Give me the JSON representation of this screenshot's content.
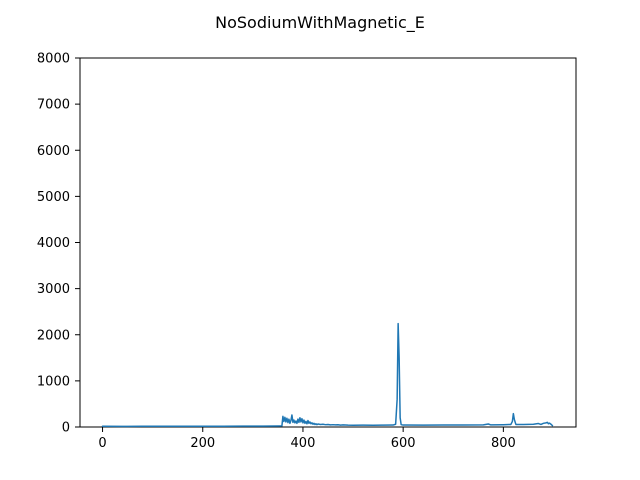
{
  "chart_data": {
    "type": "line",
    "title": "NoSodiumWithMagnetic_E",
    "xlabel": "",
    "ylabel": "",
    "xlim": [
      -45,
      945
    ],
    "ylim": [
      0,
      8000
    ],
    "xticks": [
      0,
      200,
      400,
      600,
      800
    ],
    "yticks": [
      0,
      1000,
      2000,
      3000,
      4000,
      5000,
      6000,
      7000,
      8000
    ],
    "grid": false,
    "series": [
      {
        "color": "#1f77b4",
        "points": [
          [
            0,
            15
          ],
          [
            40,
            14
          ],
          [
            80,
            15
          ],
          [
            120,
            16
          ],
          [
            160,
            15
          ],
          [
            200,
            17
          ],
          [
            240,
            16
          ],
          [
            280,
            18
          ],
          [
            320,
            20
          ],
          [
            350,
            22
          ],
          [
            358,
            24
          ],
          [
            360,
            230
          ],
          [
            362,
            120
          ],
          [
            364,
            210
          ],
          [
            366,
            110
          ],
          [
            368,
            190
          ],
          [
            370,
            95
          ],
          [
            372,
            170
          ],
          [
            374,
            80
          ],
          [
            376,
            140
          ],
          [
            378,
            260
          ],
          [
            380,
            100
          ],
          [
            382,
            150
          ],
          [
            384,
            90
          ],
          [
            386,
            130
          ],
          [
            388,
            80
          ],
          [
            390,
            170
          ],
          [
            392,
            100
          ],
          [
            394,
            200
          ],
          [
            396,
            110
          ],
          [
            398,
            180
          ],
          [
            400,
            90
          ],
          [
            402,
            150
          ],
          [
            404,
            80
          ],
          [
            406,
            120
          ],
          [
            408,
            70
          ],
          [
            410,
            140
          ],
          [
            412,
            80
          ],
          [
            414,
            110
          ],
          [
            416,
            70
          ],
          [
            418,
            90
          ],
          [
            420,
            60
          ],
          [
            422,
            80
          ],
          [
            424,
            55
          ],
          [
            426,
            70
          ],
          [
            428,
            50
          ],
          [
            430,
            65
          ],
          [
            435,
            55
          ],
          [
            440,
            60
          ],
          [
            445,
            50
          ],
          [
            450,
            55
          ],
          [
            455,
            45
          ],
          [
            460,
            50
          ],
          [
            465,
            45
          ],
          [
            470,
            48
          ],
          [
            475,
            40
          ],
          [
            480,
            45
          ],
          [
            490,
            40
          ],
          [
            500,
            38
          ],
          [
            520,
            40
          ],
          [
            540,
            38
          ],
          [
            560,
            40
          ],
          [
            580,
            42
          ],
          [
            585,
            60
          ],
          [
            588,
            600
          ],
          [
            590,
            2240
          ],
          [
            592,
            1500
          ],
          [
            594,
            200
          ],
          [
            596,
            50
          ],
          [
            600,
            42
          ],
          [
            640,
            40
          ],
          [
            680,
            42
          ],
          [
            720,
            44
          ],
          [
            760,
            46
          ],
          [
            770,
            65
          ],
          [
            775,
            45
          ],
          [
            800,
            50
          ],
          [
            815,
            55
          ],
          [
            818,
            120
          ],
          [
            820,
            290
          ],
          [
            822,
            160
          ],
          [
            825,
            55
          ],
          [
            840,
            55
          ],
          [
            860,
            60
          ],
          [
            870,
            75
          ],
          [
            875,
            55
          ],
          [
            880,
            80
          ],
          [
            885,
            90
          ],
          [
            888,
            100
          ],
          [
            890,
            70
          ],
          [
            892,
            85
          ],
          [
            895,
            60
          ],
          [
            898,
            30
          ]
        ]
      }
    ]
  }
}
